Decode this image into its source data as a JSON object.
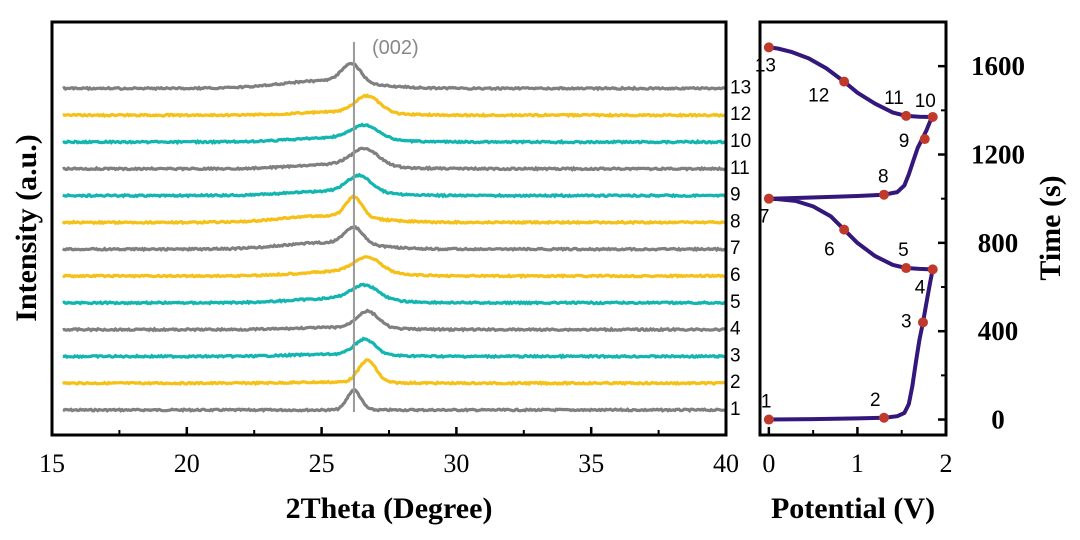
{
  "chart_data": [
    {
      "type": "line",
      "title": "",
      "xlabel": "2Theta (Degree)",
      "ylabel": "Intensity (a.u.)",
      "xlim": [
        15,
        40
      ],
      "xticks": [
        15,
        20,
        25,
        30,
        35,
        40
      ],
      "y_ticks_shown": false,
      "reference_line": {
        "x": 26.2,
        "label": "(002)"
      },
      "series": [
        {
          "name": "1",
          "color": "#808080",
          "peak_center": 26.2,
          "peak_height": 0.9,
          "peak_width": 0.25,
          "broad": 0.0
        },
        {
          "name": "2",
          "color": "#F5C017",
          "peak_center": 26.7,
          "peak_height": 1.0,
          "peak_width": 0.32,
          "broad": 0.05
        },
        {
          "name": "3",
          "color": "#12B5B0",
          "peak_center": 26.6,
          "peak_height": 0.7,
          "peak_width": 0.38,
          "broad": 0.1
        },
        {
          "name": "4",
          "color": "#808080",
          "peak_center": 26.7,
          "peak_height": 0.75,
          "peak_width": 0.4,
          "broad": 0.1
        },
        {
          "name": "5",
          "color": "#12B5B0",
          "peak_center": 26.6,
          "peak_height": 0.65,
          "peak_width": 0.5,
          "broad": 0.2
        },
        {
          "name": "6",
          "color": "#F5C017",
          "peak_center": 26.7,
          "peak_height": 0.7,
          "peak_width": 0.5,
          "broad": 0.2
        },
        {
          "name": "7",
          "color": "#808080",
          "peak_center": 26.2,
          "peak_height": 0.75,
          "peak_width": 0.35,
          "broad": 0.3
        },
        {
          "name": "8",
          "color": "#F5C017",
          "peak_center": 26.2,
          "peak_height": 0.9,
          "peak_width": 0.3,
          "broad": 0.3
        },
        {
          "name": "9",
          "color": "#12B5B0",
          "peak_center": 26.4,
          "peak_height": 0.75,
          "peak_width": 0.45,
          "broad": 0.2
        },
        {
          "name": "11",
          "color": "#808080",
          "peak_center": 26.6,
          "peak_height": 0.75,
          "peak_width": 0.5,
          "broad": 0.2
        },
        {
          "name": "10",
          "color": "#12B5B0",
          "peak_center": 26.6,
          "peak_height": 0.6,
          "peak_width": 0.5,
          "broad": 0.2
        },
        {
          "name": "12",
          "color": "#F5C017",
          "peak_center": 26.7,
          "peak_height": 0.75,
          "peak_width": 0.45,
          "broad": 0.15
        },
        {
          "name": "13",
          "color": "#808080",
          "peak_center": 26.1,
          "peak_height": 0.85,
          "peak_width": 0.35,
          "broad": 0.35
        }
      ]
    },
    {
      "type": "line",
      "title": "",
      "xlabel": "Potential (V)",
      "ylabel": "Time (s)",
      "xlim": [
        -0.1,
        2.0
      ],
      "ylim": [
        -70,
        1800
      ],
      "xticks": [
        0,
        1,
        2
      ],
      "yticks": [
        0,
        400,
        800,
        1200,
        1600
      ],
      "line_color": "#34177A",
      "marker_color": "#C0392B",
      "curve": [
        [
          0.0,
          0
        ],
        [
          0.5,
          2
        ],
        [
          1.0,
          5
        ],
        [
          1.3,
          8
        ],
        [
          1.45,
          15
        ],
        [
          1.53,
          30
        ],
        [
          1.58,
          70
        ],
        [
          1.62,
          150
        ],
        [
          1.66,
          260
        ],
        [
          1.7,
          360
        ],
        [
          1.74,
          440
        ],
        [
          1.78,
          530
        ],
        [
          1.82,
          620
        ],
        [
          1.85,
          680
        ],
        [
          1.84,
          680
        ],
        [
          1.7,
          682
        ],
        [
          1.55,
          686
        ],
        [
          1.4,
          700
        ],
        [
          1.2,
          740
        ],
        [
          1.0,
          800
        ],
        [
          0.85,
          860
        ],
        [
          0.7,
          920
        ],
        [
          0.5,
          965
        ],
        [
          0.3,
          990
        ],
        [
          0.1,
          998
        ],
        [
          0.0,
          1000
        ],
        [
          0.3,
          1003
        ],
        [
          0.7,
          1008
        ],
        [
          1.0,
          1012
        ],
        [
          1.3,
          1018
        ],
        [
          1.45,
          1030
        ],
        [
          1.53,
          1060
        ],
        [
          1.58,
          1110
        ],
        [
          1.63,
          1170
        ],
        [
          1.68,
          1230
        ],
        [
          1.73,
          1270
        ],
        [
          1.78,
          1310
        ],
        [
          1.82,
          1350
        ],
        [
          1.85,
          1370
        ],
        [
          1.7,
          1371
        ],
        [
          1.55,
          1375
        ],
        [
          1.4,
          1390
        ],
        [
          1.2,
          1430
        ],
        [
          1.0,
          1480
        ],
        [
          0.85,
          1530
        ],
        [
          0.65,
          1590
        ],
        [
          0.45,
          1635
        ],
        [
          0.25,
          1665
        ],
        [
          0.1,
          1680
        ],
        [
          0.0,
          1685
        ]
      ],
      "points": [
        {
          "label": "1",
          "x": 0.0,
          "y": 0
        },
        {
          "label": "2",
          "x": 1.3,
          "y": 8
        },
        {
          "label": "3",
          "x": 1.74,
          "y": 440
        },
        {
          "label": "4",
          "x": 1.85,
          "y": 680
        },
        {
          "label": "5",
          "x": 1.55,
          "y": 686
        },
        {
          "label": "6",
          "x": 0.85,
          "y": 860
        },
        {
          "label": "7",
          "x": 0.0,
          "y": 1000
        },
        {
          "label": "8",
          "x": 1.3,
          "y": 1018
        },
        {
          "label": "9",
          "x": 1.76,
          "y": 1270
        },
        {
          "label": "10",
          "x": 1.85,
          "y": 1370
        },
        {
          "label": "11",
          "x": 1.55,
          "y": 1375
        },
        {
          "label": "12",
          "x": 0.85,
          "y": 1530
        },
        {
          "label": "13",
          "x": 0.0,
          "y": 1685
        }
      ]
    }
  ]
}
